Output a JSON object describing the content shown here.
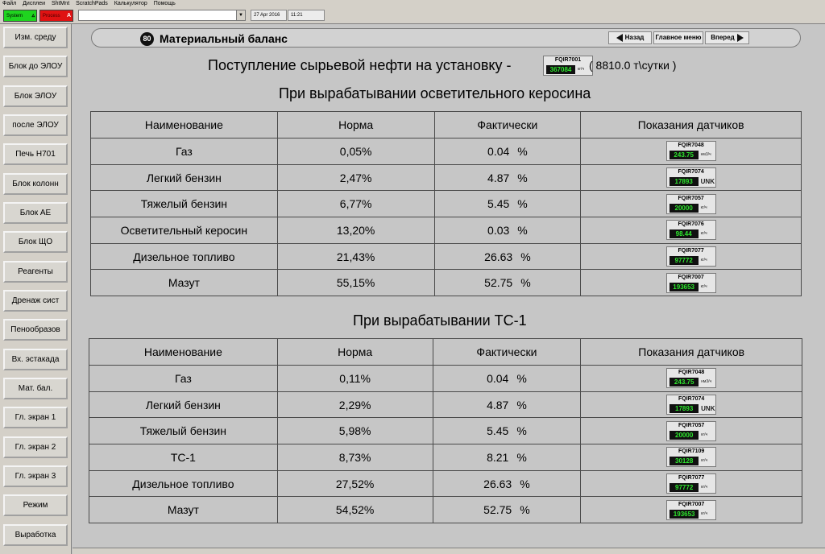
{
  "menu": [
    "Файл",
    "Дисплеи",
    "ShtMnt",
    "ScratchPads",
    "Калькулятор",
    "Помощь"
  ],
  "toolbar": {
    "alarm_system": "System",
    "alarm_process": "Process",
    "date": "27 Apr 2016",
    "time": "11:21"
  },
  "colors": {
    "system_alarm": "#1fd41f",
    "process_alarm": "#e01212",
    "sensor_value": "#2ee82e"
  },
  "sidebar": {
    "items": [
      "Изм. среду",
      "Блок до ЭЛОУ",
      "Блок ЭЛОУ",
      "после ЭЛОУ",
      "Печь Н701",
      "Блок колонн",
      "Блок АЕ",
      "Блок ЩО",
      "Реагенты",
      "Дренаж сист",
      "Пенообразов",
      "Вх. эстакада",
      "Мат. бал.",
      "Гл. экран 1",
      "Гл. экран 2",
      "Гл. экран 3",
      "Режим",
      "Выработка"
    ]
  },
  "header": {
    "page_number": "80",
    "title": "Материальный баланс",
    "back_label": "Назад",
    "home_label": "Главное меню",
    "forward_label": "Вперед"
  },
  "supply": {
    "label": "Поступление сырьевой нефти на установку -",
    "sensor": {
      "tag": "FQIR7001",
      "value": "367084",
      "unit": "кг/ч"
    },
    "rate": "( 8810.0 т\\сутки )"
  },
  "columns": [
    "Наименование",
    "Норма",
    "Фактически",
    "Показания датчиков"
  ],
  "percent_sign": "%",
  "section1": {
    "title": "При вырабатывании осветительного керосина",
    "rows": [
      {
        "name": "Газ",
        "norm": "0,05%",
        "actual": "0.04",
        "sensor": {
          "tag": "FQIR7048",
          "value": "243.75",
          "unit": "нм3/ч"
        }
      },
      {
        "name": "Легкий бензин",
        "norm": "2,47%",
        "actual": "4.87",
        "sensor": {
          "tag": "FQIR7074",
          "value": "17893",
          "unit": "UNK"
        }
      },
      {
        "name": "Тяжелый бензин",
        "norm": "6,77%",
        "actual": "5.45",
        "sensor": {
          "tag": "FQIR7057",
          "value": "20000",
          "unit": "кг/ч"
        }
      },
      {
        "name": "Осветительный керосин",
        "norm": "13,20%",
        "actual": "0.03",
        "sensor": {
          "tag": "FQIR7076",
          "value": "98.44",
          "unit": "кг/ч"
        }
      },
      {
        "name": "Дизельное топливо",
        "norm": "21,43%",
        "actual": "26.63",
        "sensor": {
          "tag": "FQIR7077",
          "value": "97772",
          "unit": "кг/ч"
        }
      },
      {
        "name": "Мазут",
        "norm": "55,15%",
        "actual": "52.75",
        "sensor": {
          "tag": "FQIR7007",
          "value": "193653",
          "unit": "кг/ч"
        }
      }
    ]
  },
  "section2": {
    "title": "При вырабатывании ТС-1",
    "rows": [
      {
        "name": "Газ",
        "norm": "0,11%",
        "actual": "0.04",
        "sensor": {
          "tag": "FQIR7048",
          "value": "243.75",
          "unit": "нм3/ч"
        }
      },
      {
        "name": "Легкий бензин",
        "norm": "2,29%",
        "actual": "4.87",
        "sensor": {
          "tag": "FQIR7074",
          "value": "17893",
          "unit": "UNK"
        }
      },
      {
        "name": "Тяжелый бензин",
        "norm": "5,98%",
        "actual": "5.45",
        "sensor": {
          "tag": "FQIR7057",
          "value": "20000",
          "unit": "кг/ч"
        }
      },
      {
        "name": "ТС-1",
        "norm": "8,73%",
        "actual": "8.21",
        "sensor": {
          "tag": "FQIR7109",
          "value": "30128",
          "unit": "кг/ч"
        }
      },
      {
        "name": "Дизельное топливо",
        "norm": "27,52%",
        "actual": "26.63",
        "sensor": {
          "tag": "FQIR7077",
          "value": "97772",
          "unit": "кг/ч"
        }
      },
      {
        "name": "Мазут",
        "norm": "54,52%",
        "actual": "52.75",
        "sensor": {
          "tag": "FQIR7007",
          "value": "193653",
          "unit": "кг/ч"
        }
      }
    ]
  }
}
